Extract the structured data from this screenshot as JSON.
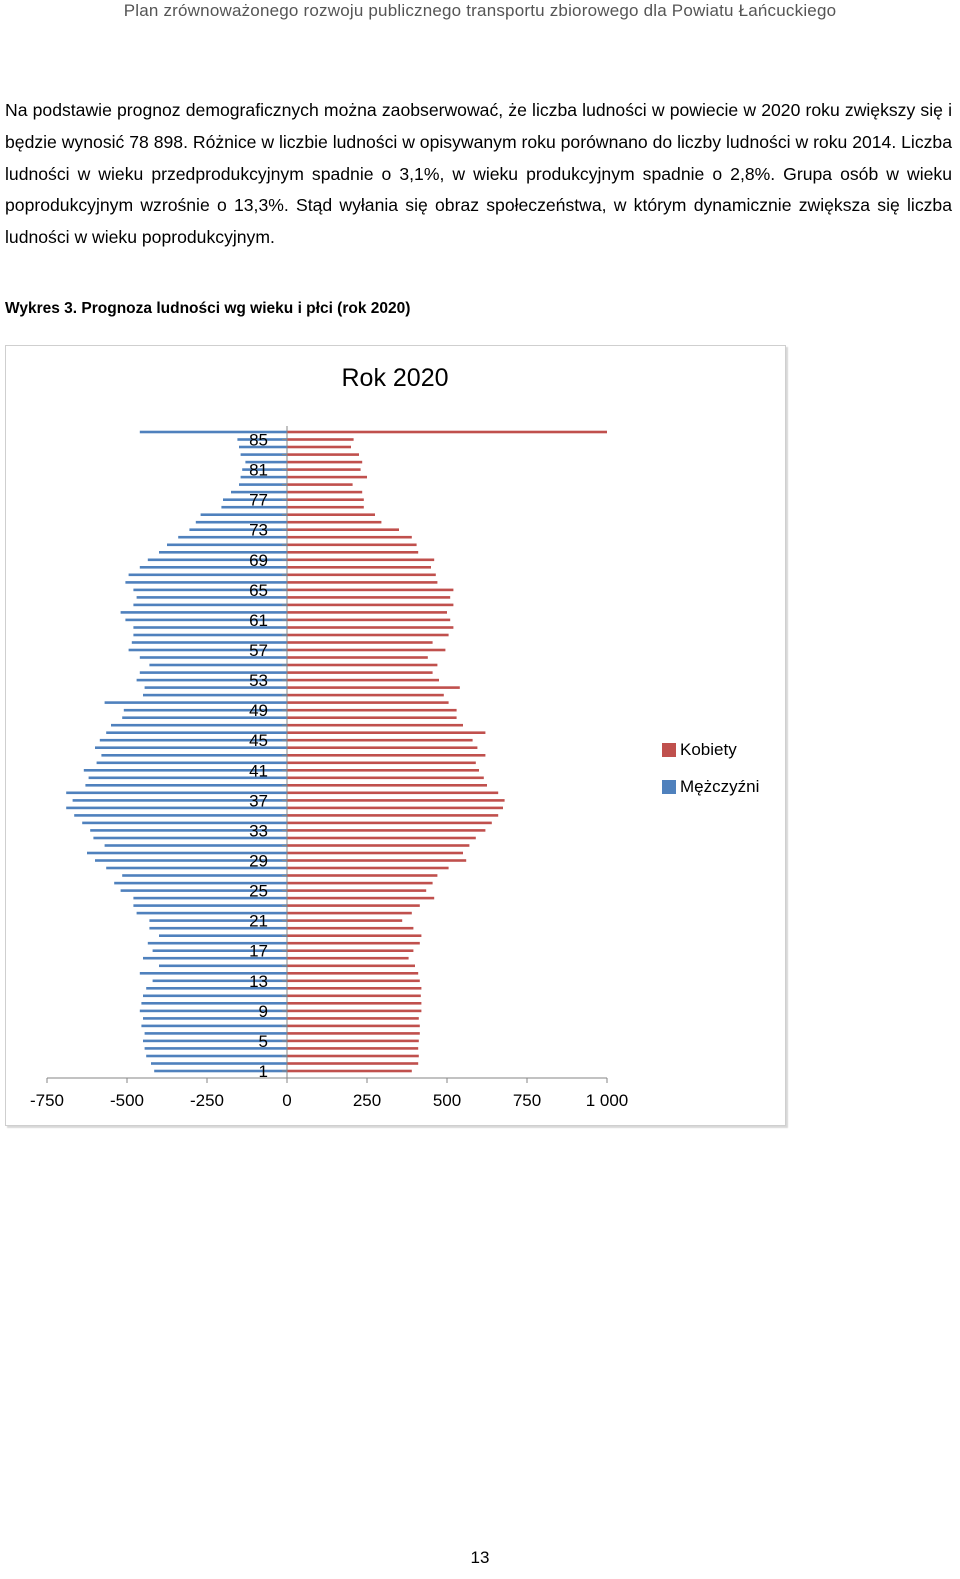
{
  "header": {
    "title": "Plan zrównoważonego rozwoju publicznego transportu zbiorowego dla Powiatu Łańcuckiego"
  },
  "body": {
    "paragraph": "Na podstawie prognoz demograficznych można zaobserwować, że liczba ludności w powiecie w 2020 roku zwiększy się i będzie wynosić 78 898. Różnice w liczbie ludności w opisywanym roku porównano do liczby ludności w roku 2014. Liczba ludności w wieku przedprodukcyjnym spadnie o 3,1%, w wieku produkcyjnym spadnie o 2,8%. Grupa osób w wieku poprodukcyjnym wzrośnie o 13,3%. Stąd wyłania się obraz społeczeństwa, w którym dynamicznie zwiększa się liczba ludności w wieku poprodukcyjnym."
  },
  "figure": {
    "caption": "Wykres 3. Prognoza ludności wg wieku i płci (rok 2020)"
  },
  "colors": {
    "kobiety": "#c0504d",
    "mezczyzni": "#4f81bd",
    "axis": "#868686"
  },
  "chart_data": {
    "type": "bar",
    "orientation": "horizontal-pyramid",
    "title": "Rok 2020",
    "xlim": [
      -750,
      1000
    ],
    "xticks": [
      -750,
      -500,
      -250,
      0,
      250,
      500,
      750,
      1000
    ],
    "xtick_labels": [
      "-750",
      "-500",
      "-250",
      "0",
      "250",
      "500",
      "750",
      "1 000"
    ],
    "ytick_labels": [
      "85",
      "81",
      "77",
      "73",
      "69",
      "65",
      "61",
      "57",
      "53",
      "49",
      "45",
      "41",
      "37",
      "33",
      "29",
      "25",
      "21",
      "17",
      "13",
      "9",
      "5",
      "1"
    ],
    "legend_position": "right",
    "categories": [
      1,
      2,
      3,
      4,
      5,
      6,
      7,
      8,
      9,
      10,
      11,
      12,
      13,
      14,
      15,
      16,
      17,
      18,
      19,
      20,
      21,
      22,
      23,
      24,
      25,
      26,
      27,
      28,
      29,
      30,
      31,
      32,
      33,
      34,
      35,
      36,
      37,
      38,
      39,
      40,
      41,
      42,
      43,
      44,
      45,
      46,
      47,
      48,
      49,
      50,
      51,
      52,
      53,
      54,
      55,
      56,
      57,
      58,
      59,
      60,
      61,
      62,
      63,
      64,
      65,
      66,
      67,
      68,
      69,
      70,
      71,
      72,
      73,
      74,
      75,
      76,
      77,
      78,
      79,
      80,
      81,
      82,
      83,
      84,
      85,
      86
    ],
    "series": [
      {
        "name": "Kobiety",
        "values": [
          390,
          410,
          412,
          410,
          412,
          415,
          415,
          412,
          420,
          420,
          418,
          420,
          415,
          410,
          400,
          380,
          395,
          415,
          420,
          395,
          360,
          390,
          415,
          460,
          435,
          455,
          470,
          505,
          560,
          550,
          570,
          590,
          620,
          640,
          660,
          675,
          680,
          660,
          625,
          615,
          600,
          590,
          620,
          595,
          580,
          620,
          550,
          530,
          530,
          505,
          490,
          540,
          475,
          455,
          470,
          440,
          495,
          455,
          505,
          520,
          510,
          500,
          520,
          510,
          520,
          470,
          465,
          450,
          460,
          410,
          405,
          390,
          350,
          295,
          275,
          240,
          240,
          235,
          205,
          250,
          230,
          235,
          225,
          200,
          208,
          1000
        ]
      },
      {
        "name": "Mężczyźni",
        "values": [
          -415,
          -425,
          -440,
          -445,
          -450,
          -445,
          -455,
          -450,
          -460,
          -455,
          -450,
          -440,
          -420,
          -460,
          -400,
          -450,
          -420,
          -435,
          -400,
          -430,
          -430,
          -470,
          -480,
          -480,
          -520,
          -540,
          -515,
          -565,
          -600,
          -625,
          -570,
          -605,
          -615,
          -640,
          -665,
          -690,
          -670,
          -690,
          -630,
          -620,
          -635,
          -595,
          -580,
          -600,
          -585,
          -565,
          -550,
          -515,
          -510,
          -570,
          -450,
          -445,
          -470,
          -460,
          -430,
          -460,
          -495,
          -485,
          -480,
          -480,
          -505,
          -520,
          -480,
          -470,
          -480,
          -505,
          -495,
          -460,
          -435,
          -400,
          -375,
          -340,
          -305,
          -285,
          -270,
          -205,
          -200,
          -175,
          -150,
          -145,
          -140,
          -130,
          -145,
          -150,
          -155,
          -460
        ]
      }
    ]
  },
  "page": {
    "number": "13"
  }
}
